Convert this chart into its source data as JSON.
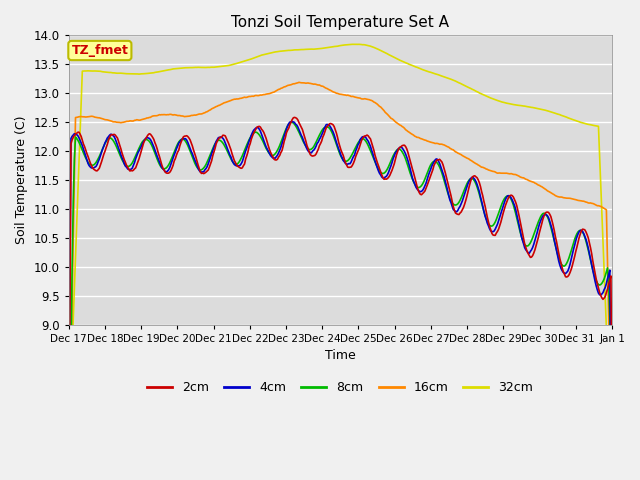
{
  "title": "Tonzi Soil Temperature Set A",
  "xlabel": "Time",
  "ylabel": "Soil Temperature (C)",
  "ylim": [
    9.0,
    14.0
  ],
  "yticks": [
    9.0,
    9.5,
    10.0,
    10.5,
    11.0,
    11.5,
    12.0,
    12.5,
    13.0,
    13.5,
    14.0
  ],
  "bg_color": "#dcdcdc",
  "plot_bg": "#dcdcdc",
  "fig_bg": "#f0f0f0",
  "annotation_text": "TZ_fmet",
  "annotation_bg": "#ffff99",
  "annotation_border": "#bbbb00",
  "annotation_fg": "#cc0000",
  "colors": {
    "2cm": "#cc0000",
    "4cm": "#0000cc",
    "8cm": "#00bb00",
    "16cm": "#ff8800",
    "32cm": "#dddd00"
  },
  "linewidth": 1.2,
  "xtick_labels": [
    "Dec 17",
    "Dec 18",
    "Dec 19",
    "Dec 20",
    "Dec 21",
    "Dec 22",
    "Dec 23",
    "Dec 24",
    "Dec 25",
    "Dec 26",
    "Dec 27",
    "Dec 28",
    "Dec 29",
    "Dec 30",
    "Dec 31",
    "Jan 1"
  ],
  "n_points": 480
}
